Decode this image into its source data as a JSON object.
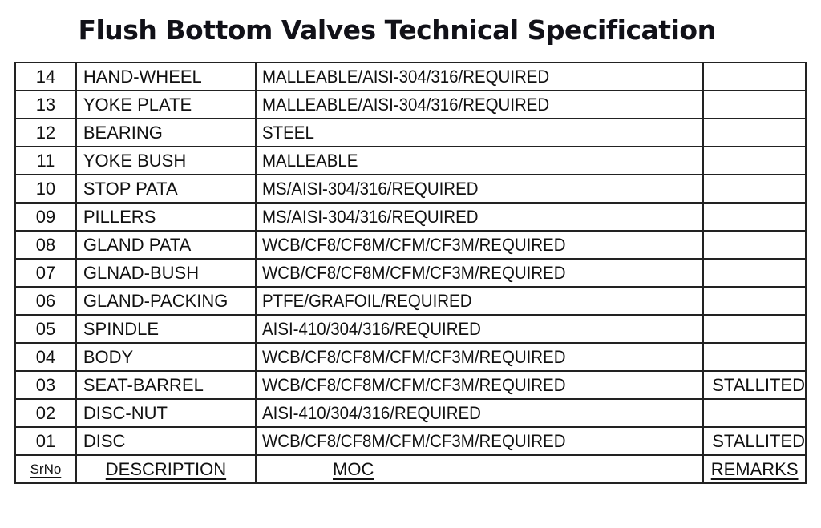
{
  "document": {
    "title": "Flush Bottom Valves Technical Specification"
  },
  "table": {
    "headers": {
      "srno": "SrNo",
      "description": "DESCRIPTION",
      "moc": "MOC",
      "remarks": "REMARKS"
    },
    "rows": [
      {
        "srno": "14",
        "description": "HAND-WHEEL",
        "moc": "MALLEABLE/AISI-304/316/REQUIRED",
        "remarks": ""
      },
      {
        "srno": "13",
        "description": "YOKE PLATE",
        "moc": "MALLEABLE/AISI-304/316/REQUIRED",
        "remarks": ""
      },
      {
        "srno": "12",
        "description": "BEARING",
        "moc": "STEEL",
        "remarks": ""
      },
      {
        "srno": "11",
        "description": "YOKE BUSH",
        "moc": "MALLEABLE",
        "remarks": ""
      },
      {
        "srno": "10",
        "description": "STOP PATA",
        "moc": "MS/AISI-304/316/REQUIRED",
        "remarks": ""
      },
      {
        "srno": "09",
        "description": "PILLERS",
        "moc": "MS/AISI-304/316/REQUIRED",
        "remarks": ""
      },
      {
        "srno": "08",
        "description": "GLAND PATA",
        "moc": "WCB/CF8/CF8M/CFM/CF3M/REQUIRED",
        "remarks": ""
      },
      {
        "srno": "07",
        "description": "GLNAD-BUSH",
        "moc": "WCB/CF8/CF8M/CFM/CF3M/REQUIRED",
        "remarks": ""
      },
      {
        "srno": "06",
        "description": "GLAND-PACKING",
        "moc": "PTFE/GRAFOIL/REQUIRED",
        "remarks": ""
      },
      {
        "srno": "05",
        "description": "SPINDLE",
        "moc": "AISI-410/304/316/REQUIRED",
        "remarks": ""
      },
      {
        "srno": "04",
        "description": "BODY",
        "moc": "WCB/CF8/CF8M/CFM/CF3M/REQUIRED",
        "remarks": ""
      },
      {
        "srno": "03",
        "description": "SEAT-BARREL",
        "moc": "WCB/CF8/CF8M/CFM/CF3M/REQUIRED",
        "remarks": "STALLITED"
      },
      {
        "srno": "02",
        "description": "DISC-NUT",
        "moc": "AISI-410/304/316/REQUIRED",
        "remarks": ""
      },
      {
        "srno": "01",
        "description": "DISC",
        "moc": "WCB/CF8/CF8M/CFM/CF3M/REQUIRED",
        "remarks": "STALLITED"
      }
    ]
  }
}
